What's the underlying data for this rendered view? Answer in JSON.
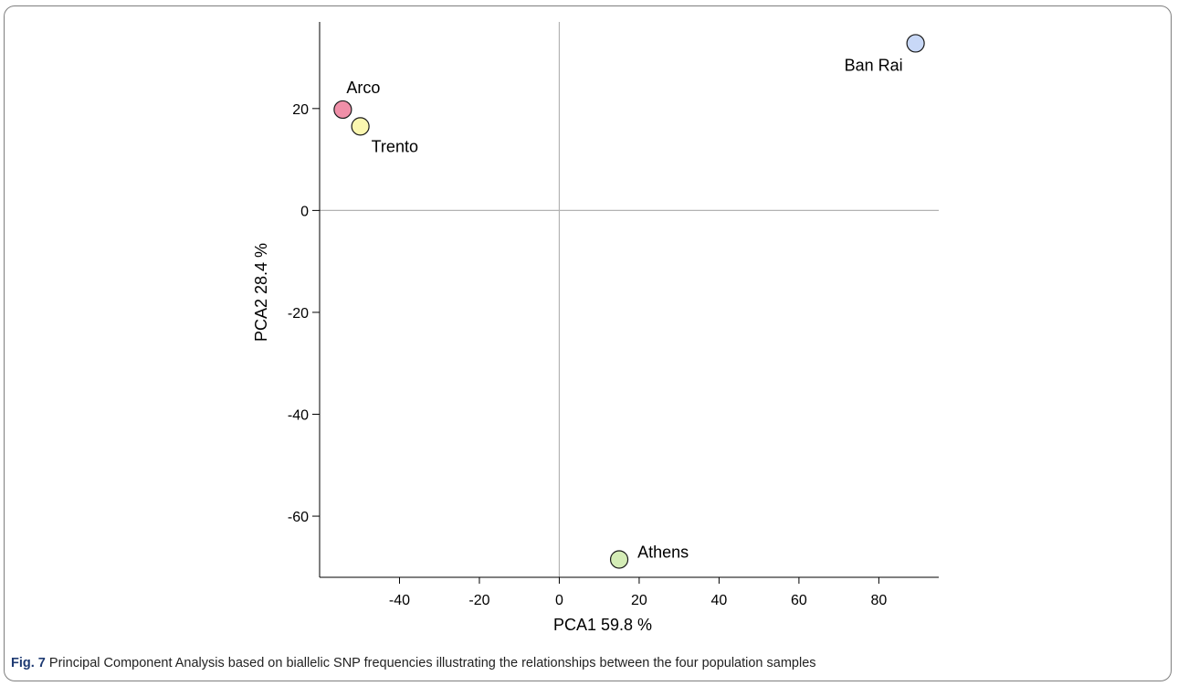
{
  "chart_data": {
    "type": "scatter",
    "xlabel": "PCA1  59.8 %",
    "ylabel": "PCA2  28.4 %",
    "xlim": [
      -60,
      95
    ],
    "ylim": [
      -72,
      37
    ],
    "xticks": [
      -40,
      -20,
      0,
      20,
      40,
      60,
      80
    ],
    "yticks": [
      20,
      0,
      -20,
      -40,
      -60
    ],
    "grid": false,
    "reference_lines": [
      0
    ],
    "points": [
      {
        "label": "Arco",
        "x": -54.2,
        "y": 19.8,
        "color": "#f08fa8"
      },
      {
        "label": "Trento",
        "x": -49.8,
        "y": 16.5,
        "color": "#fbf7b0"
      },
      {
        "label": "Ban Rai",
        "x": 89.2,
        "y": 32.8,
        "color": "#c8d8f7"
      },
      {
        "label": "Athens",
        "x": 15.0,
        "y": -68.5,
        "color": "#d4ecb6"
      }
    ]
  },
  "caption": {
    "label": "Fig. 7",
    "text": " Principal Component Analysis based on biallelic SNP frequencies illustrating the relationships between the four population samples"
  }
}
